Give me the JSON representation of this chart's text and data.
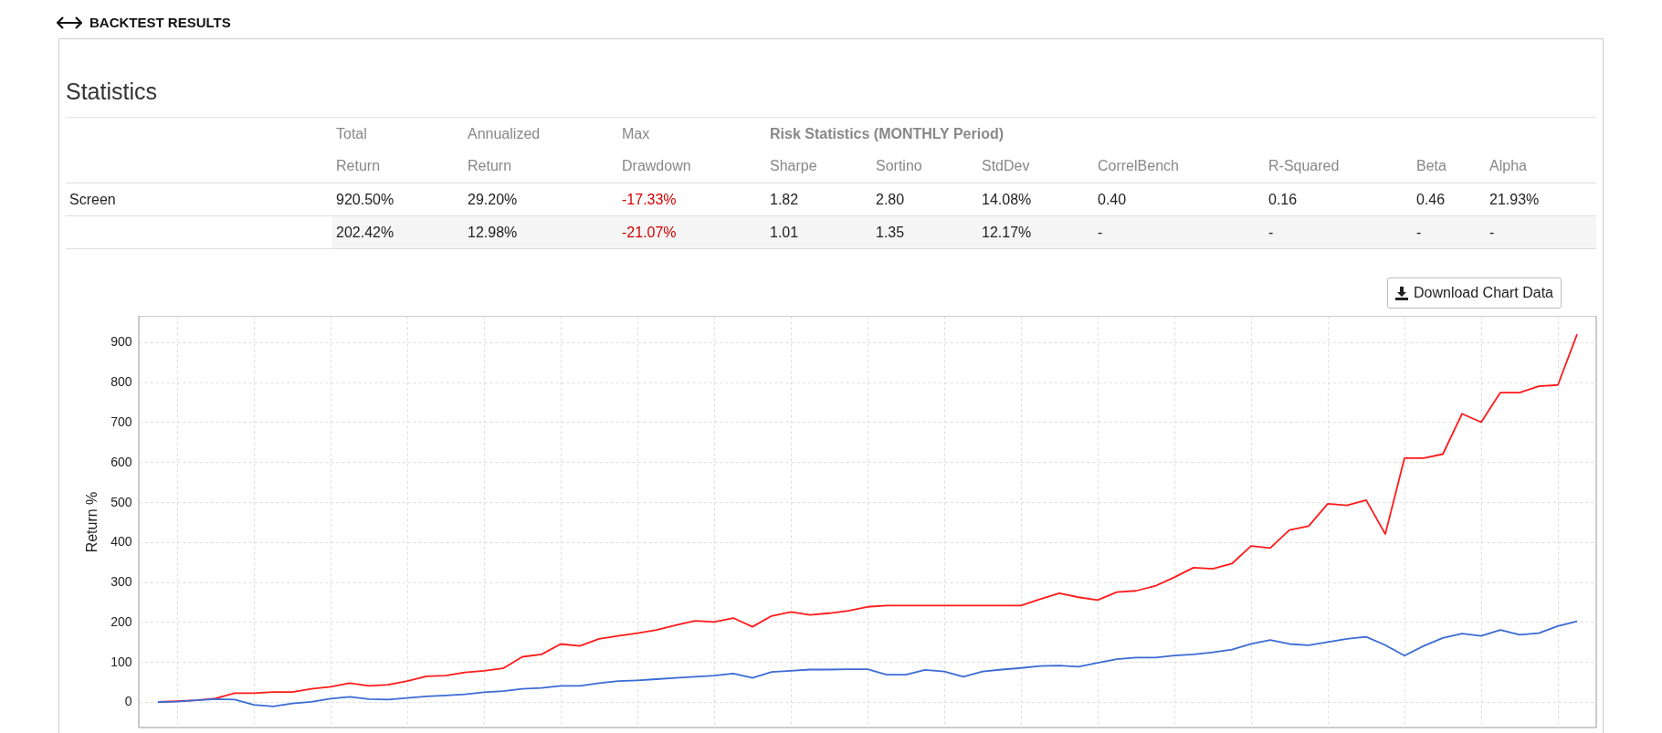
{
  "chart_data": [
    {
      "type": "other",
      "title": "BACKTEST RESULTS",
      "subtitle": "Statistics",
      "annotations": [
        "Total",
        "Annualized",
        "Max",
        "Risk Statistics (MONTHLY Period)",
        "Return",
        "Return",
        "Drawdown",
        "Sharpe",
        "Sortino",
        "StdDev",
        "CorrelBench",
        "R-Squared",
        "Beta",
        "Alpha",
        "Screen",
        "920.50%",
        "29.20%",
        "-17.33%",
        "1.82",
        "2.80",
        "14.08%",
        "0.40",
        "0.16",
        "0.46",
        "21.93%",
        "202.42%",
        "12.98%",
        "-21.07%",
        "1.01",
        "1.35",
        "12.17%",
        "-",
        "-",
        "-",
        "-"
      ]
    },
    {
      "type": "line",
      "ylabel": "Return %",
      "annotations": [
        "Download Chart Data"
      ],
      "categories": [
        null,
        null,
        null,
        null,
        null,
        null,
        null,
        null,
        null,
        null,
        null,
        null,
        null,
        null,
        null,
        null,
        null,
        null,
        null,
        null,
        null,
        null,
        null,
        null,
        null,
        null,
        null,
        null,
        null,
        null,
        null,
        null,
        null,
        null,
        null,
        null,
        null,
        null,
        null,
        null,
        null,
        null,
        null,
        null,
        null,
        null,
        null,
        null,
        null,
        null,
        null,
        null,
        null,
        null,
        null,
        null,
        null,
        null,
        null,
        null,
        null,
        null,
        null,
        null,
        null,
        null,
        null,
        null,
        null,
        null,
        null,
        null,
        null,
        null,
        null
      ],
      "series": [
        {
          "color": "#ff1a1a",
          "values": [
            0,
            2,
            4,
            9,
            22,
            22,
            25,
            25,
            33,
            38,
            47,
            40,
            43,
            52,
            64,
            66,
            74,
            78,
            84,
            113,
            119,
            145,
            140,
            158,
            165,
            172,
            180,
            192,
            203,
            200,
            210,
            188,
            215,
            225,
            218,
            222,
            228,
            238,
            241,
            241,
            241,
            241,
            241,
            241,
            241,
            241,
            257,
            272,
            262,
            255,
            275,
            278,
            290,
            312,
            336,
            333,
            346,
            390,
            385,
            430,
            440,
            496,
            492,
            505,
            420,
            610,
            610,
            620,
            721,
            700,
            774,
            774,
            790,
            793,
            920
          ]
        },
        {
          "color": "#3b6bd6",
          "values": [
            0,
            1,
            4,
            7,
            6,
            -7,
            -11,
            -4,
            0,
            8,
            13,
            7,
            6,
            10,
            14,
            16,
            19,
            24,
            27,
            33,
            35,
            40,
            40,
            47,
            52,
            54,
            57,
            60,
            63,
            66,
            71,
            60,
            75,
            78,
            81,
            81,
            82,
            82,
            68,
            68,
            80,
            76,
            63,
            76,
            81,
            85,
            90,
            91,
            88,
            98,
            107,
            111,
            111,
            116,
            119,
            124,
            131,
            145,
            155,
            145,
            142,
            150,
            158,
            163,
            142,
            116,
            140,
            160,
            171,
            165,
            180,
            168,
            172,
            190,
            202
          ]
        }
      ],
      "ylim": [
        -64,
        966
      ],
      "yticks": [
        0,
        100,
        200,
        300,
        400,
        500,
        600,
        700,
        800,
        900
      ],
      "grid": true,
      "tick_labels": "y"
    }
  ]
}
